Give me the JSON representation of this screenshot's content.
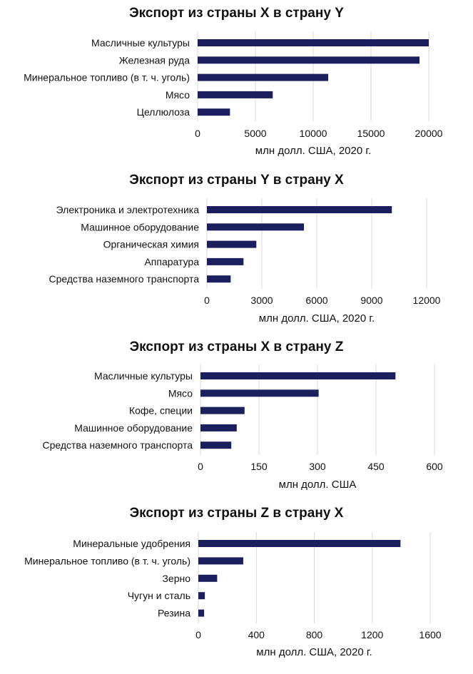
{
  "colors": {
    "bar": "#1b1f5e",
    "grid": "#d9d9d9",
    "text": "#111111"
  },
  "chart_data": [
    {
      "type": "bar",
      "orientation": "horizontal",
      "title": "Экспорт из страны X в страну Y",
      "categories": [
        "Масличные культуры",
        "Железная руда",
        "Минеральное топливо (в т. ч. уголь)",
        "Мясо",
        "Целлюлоза"
      ],
      "values": [
        20000,
        19200,
        11300,
        6500,
        2800
      ],
      "xlabel": "млн долл. США, 2020 г.",
      "xlim": [
        0,
        20000
      ],
      "ticks": [
        0,
        5000,
        10000,
        15000,
        20000
      ],
      "tick_labels": [
        "0",
        "5000",
        "10000",
        "15000",
        "20000"
      ],
      "grid": true
    },
    {
      "type": "bar",
      "orientation": "horizontal",
      "title": "Экспорт из страны Y в страну X",
      "categories": [
        "Электроника и электротехника",
        "Машинное оборудование",
        "Органическая химия",
        "Аппаратура",
        "Средства наземного транспорта"
      ],
      "values": [
        10100,
        5300,
        2700,
        2000,
        1300
      ],
      "xlabel": "млн долл. США, 2020 г.",
      "xlim": [
        0,
        12000
      ],
      "ticks": [
        0,
        3000,
        6000,
        9000,
        12000
      ],
      "tick_labels": [
        "0",
        "3000",
        "6000",
        "9000",
        "12000"
      ],
      "grid": true
    },
    {
      "type": "bar",
      "orientation": "horizontal",
      "title": "Экспорт из страны X в страну Z",
      "categories": [
        "Масличные культуры",
        "Мясо",
        "Кофе, специи",
        "Машинное оборудование",
        "Средства наземного транспорта"
      ],
      "values": [
        500,
        303,
        113,
        93,
        79
      ],
      "xlabel": "млн долл. США",
      "xlim": [
        0,
        600
      ],
      "ticks": [
        0,
        150,
        300,
        450,
        600
      ],
      "tick_labels": [
        "0",
        "150",
        "300",
        "450",
        "600"
      ],
      "grid": true
    },
    {
      "type": "bar",
      "orientation": "horizontal",
      "title": "Экспорт из страны Z в страну X",
      "categories": [
        "Минеральные удобрения",
        "Минеральное топливо (в т. ч. уголь)",
        "Зерно",
        "Чугун и сталь",
        "Резина"
      ],
      "values": [
        1395,
        310,
        130,
        45,
        40
      ],
      "xlabel": "млн долл. США, 2020 г.",
      "xlim": [
        0,
        1600
      ],
      "ticks": [
        0,
        400,
        800,
        1200,
        1600
      ],
      "tick_labels": [
        "0",
        "400",
        "800",
        "1200",
        "1600"
      ],
      "grid": true
    }
  ]
}
